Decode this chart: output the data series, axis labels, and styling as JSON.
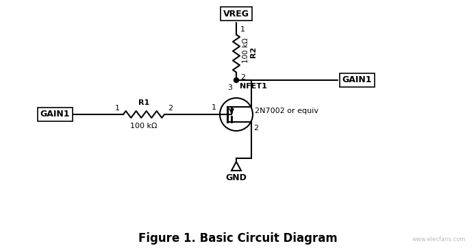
{
  "title": "Figure 1. Basic Circuit Diagram",
  "title_fontsize": 12,
  "bg_color": "#ffffff",
  "line_color": "#000000",
  "text_color": "#000000",
  "vreg_label": "VREG",
  "gnd_label": "GND",
  "r1_label": "R1",
  "r1_value": "100 kΩ",
  "r2_label": "R2",
  "r2_value": "100 kΩ",
  "nfet_label": "NFET1",
  "transistor_label": "2N7002 or equiv",
  "gain1_label": "GAIN1"
}
